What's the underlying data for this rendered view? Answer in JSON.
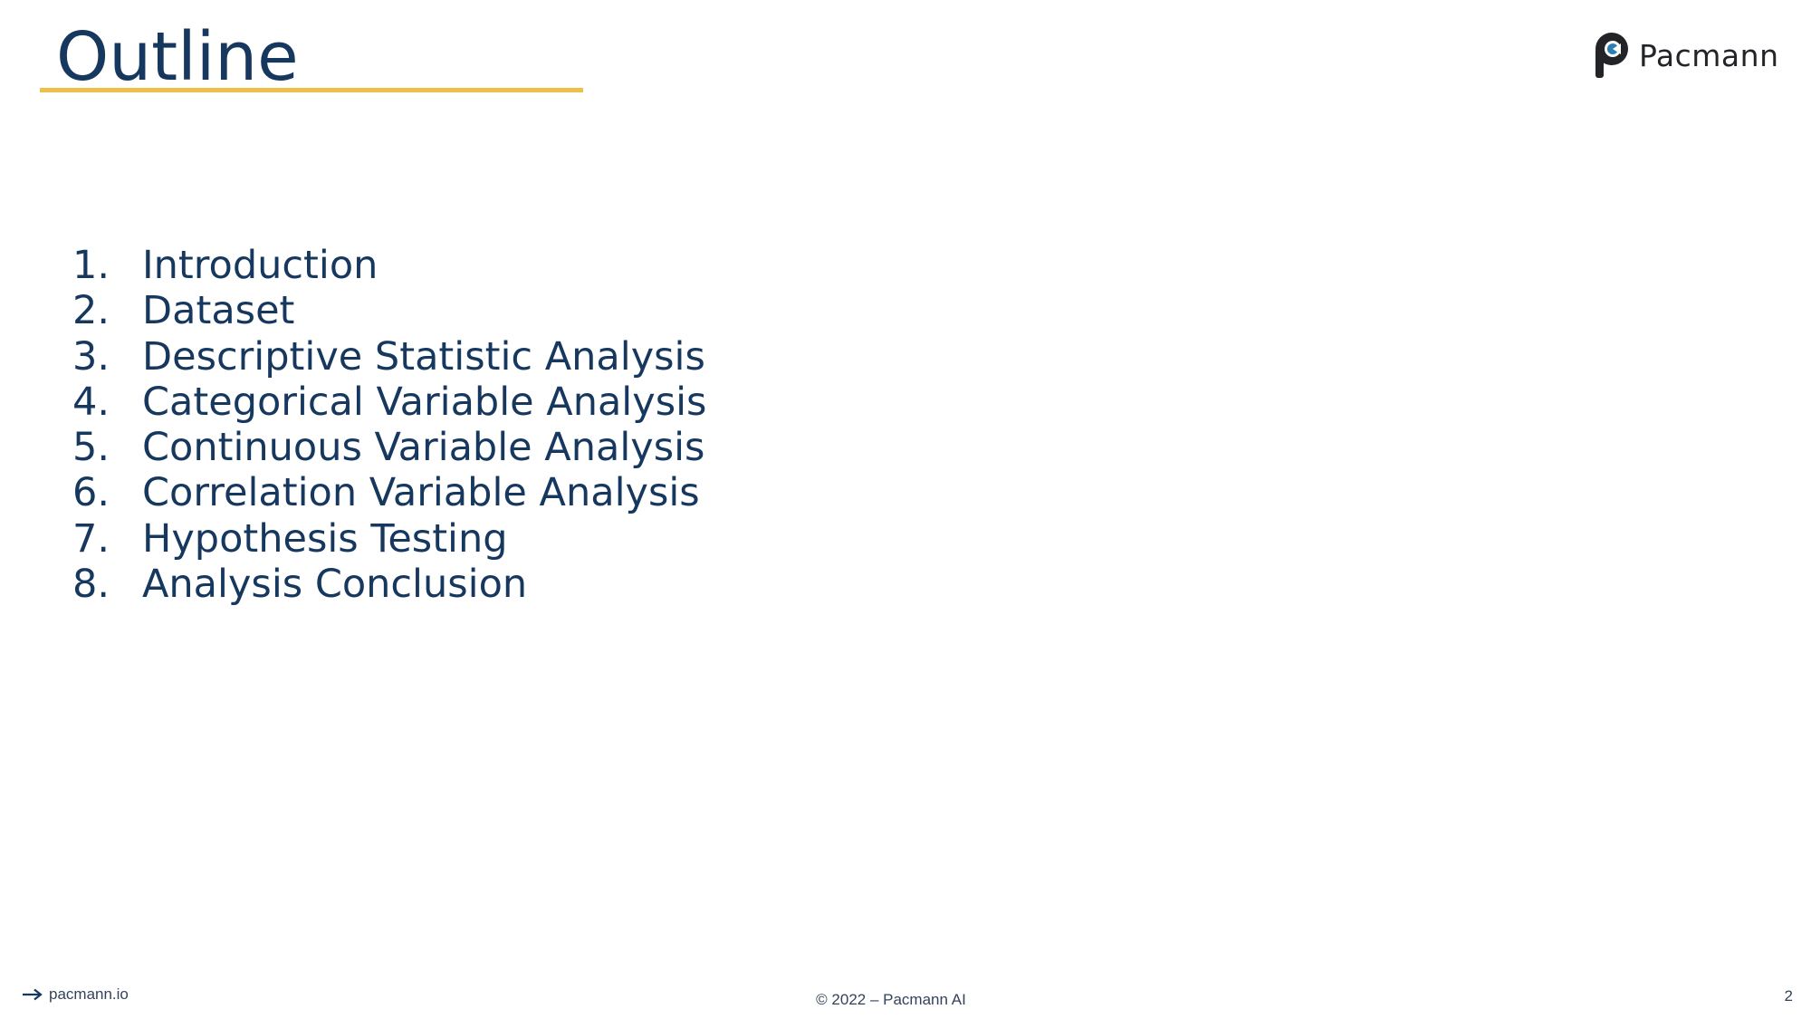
{
  "slide": {
    "title": "Outline",
    "accent_color": "#eec04a",
    "text_color": "#16375e"
  },
  "logo": {
    "icon": "pacmann-logo-icon",
    "text": "Pacmann"
  },
  "outline": {
    "items": [
      {
        "number": "1.",
        "label": "Introduction"
      },
      {
        "number": "2.",
        "label": "Dataset"
      },
      {
        "number": "3.",
        "label": "Descriptive Statistic Analysis"
      },
      {
        "number": "4.",
        "label": "Categorical Variable Analysis"
      },
      {
        "number": "5.",
        "label": "Continuous Variable Analysis"
      },
      {
        "number": "6.",
        "label": "Correlation Variable Analysis"
      },
      {
        "number": "7.",
        "label": "Hypothesis Testing"
      },
      {
        "number": "8.",
        "label": "Analysis Conclusion"
      }
    ]
  },
  "footer": {
    "link_icon": "arrow-right-icon",
    "link_text": "pacmann.io",
    "copyright": "© 2022 – Pacmann AI",
    "page_number": "2"
  }
}
